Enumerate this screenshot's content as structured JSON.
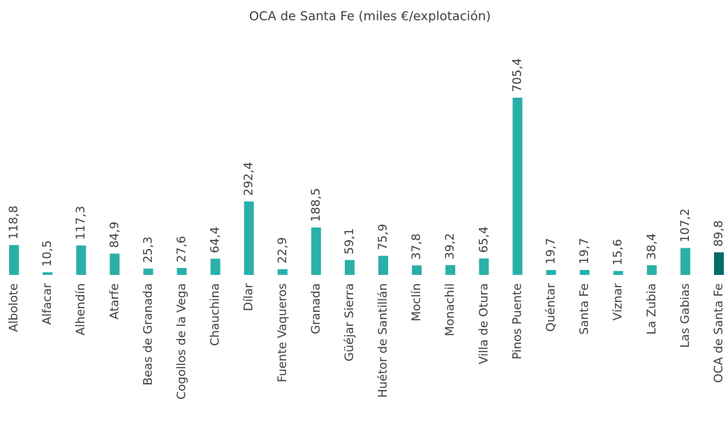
{
  "chart_data": {
    "type": "bar",
    "title": "OCA de Santa Fe (miles €/explotación)",
    "categories": [
      "Albolote",
      "Alfacar",
      "Alhendín",
      "Atarfe",
      "Beas de Granada",
      "Cogollos de la Vega",
      "Chauchina",
      "Dílar",
      "Fuente Vaqueros",
      "Granada",
      "Güéjar Sierra",
      "Huétor de Santillán",
      "Moclín",
      "Monachil",
      "Villa de Otura",
      "Pinos Puente",
      "Quéntar",
      "Santa Fe",
      "Víznar",
      "La Zubia",
      "Las Gabias",
      "OCA de Santa Fe"
    ],
    "values": [
      118.8,
      10.5,
      117.3,
      84.9,
      25.3,
      27.6,
      64.4,
      292.4,
      22.9,
      188.5,
      59.1,
      75.9,
      37.8,
      39.2,
      65.4,
      705.4,
      19.7,
      19.7,
      15.6,
      38.4,
      107.2,
      89.8
    ],
    "value_labels": [
      "118,8",
      "10,5",
      "117,3",
      "84,9",
      "25,3",
      "27,6",
      "64,4",
      "292,4",
      "22,9",
      "188,5",
      "59,1",
      "75,9",
      "37,8",
      "39,2",
      "65,4",
      "705,4",
      "19,7",
      "19,7",
      "15,6",
      "38,4",
      "107,2",
      "89,8"
    ],
    "colors": [
      "#2ab0a8",
      "#2ab0a8",
      "#2ab0a8",
      "#2ab0a8",
      "#2ab0a8",
      "#2ab0a8",
      "#2ab0a8",
      "#2ab0a8",
      "#2ab0a8",
      "#2ab0a8",
      "#2ab0a8",
      "#2ab0a8",
      "#2ab0a8",
      "#2ab0a8",
      "#2ab0a8",
      "#2ab0a8",
      "#2ab0a8",
      "#2ab0a8",
      "#2ab0a8",
      "#2ab0a8",
      "#2ab0a8",
      "#006b68"
    ]
  }
}
